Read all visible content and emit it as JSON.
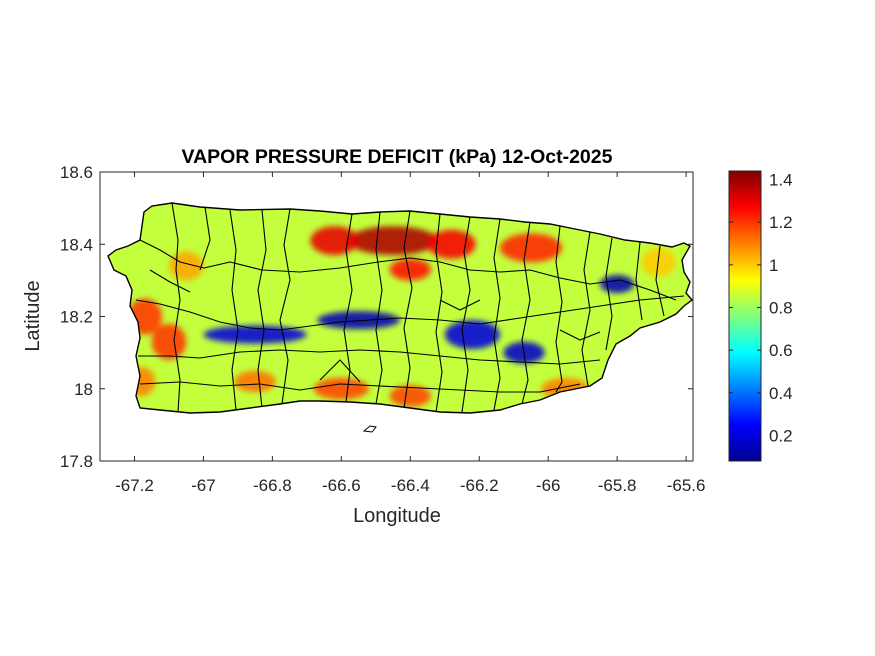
{
  "chart_data": {
    "type": "heatmap",
    "title": "VAPOR PRESSURE DEFICIT (kPa) 12-Oct-2025",
    "xlabel": "Longitude",
    "ylabel": "Latitude",
    "xlim": [
      -67.3,
      -65.58
    ],
    "ylim": [
      17.8,
      18.6
    ],
    "xticks": [
      -67.2,
      -67,
      -66.8,
      -66.6,
      -66.4,
      -66.2,
      -66,
      -65.8,
      -65.6
    ],
    "xtick_labels": [
      "-67.2",
      "-67",
      "-66.8",
      "-66.6",
      "-66.4",
      "-66.2",
      "-66",
      "-65.8",
      "-65.6"
    ],
    "yticks": [
      17.8,
      18,
      18.2,
      18.4,
      18.6
    ],
    "ytick_labels": [
      "17.8",
      "18",
      "18.2",
      "18.4",
      "18.6"
    ],
    "colormap": "jet",
    "colorbar": {
      "range": [
        0.08,
        1.44
      ],
      "ticks": [
        0.2,
        0.4,
        0.6,
        0.8,
        1,
        1.2,
        1.4
      ],
      "tick_labels": [
        "0.2",
        "0.4",
        "0.6",
        "0.8",
        "1",
        "1.2",
        "1.4"
      ]
    },
    "grid": false,
    "region": "Puerto Rico with municipality boundaries",
    "field_features": [
      {
        "lon": -66.45,
        "lat": 18.41,
        "value": 1.38,
        "spread_lon": 0.13,
        "spread_lat": 0.04
      },
      {
        "lon": -66.62,
        "lat": 18.41,
        "value": 1.3,
        "spread_lon": 0.07,
        "spread_lat": 0.04
      },
      {
        "lon": -66.28,
        "lat": 18.4,
        "value": 1.28,
        "spread_lon": 0.07,
        "spread_lat": 0.04
      },
      {
        "lon": -66.05,
        "lat": 18.39,
        "value": 1.22,
        "spread_lon": 0.09,
        "spread_lat": 0.04
      },
      {
        "lon": -66.4,
        "lat": 18.33,
        "value": 1.25,
        "spread_lon": 0.06,
        "spread_lat": 0.03
      },
      {
        "lon": -67.17,
        "lat": 18.2,
        "value": 1.2,
        "spread_lon": 0.05,
        "spread_lat": 0.05
      },
      {
        "lon": -67.1,
        "lat": 18.13,
        "value": 1.2,
        "spread_lon": 0.05,
        "spread_lat": 0.05
      },
      {
        "lon": -67.05,
        "lat": 18.34,
        "value": 1.05,
        "spread_lon": 0.05,
        "spread_lat": 0.04
      },
      {
        "lon": -67.18,
        "lat": 18.02,
        "value": 1.1,
        "spread_lon": 0.04,
        "spread_lat": 0.04
      },
      {
        "lon": -66.6,
        "lat": 18.0,
        "value": 1.18,
        "spread_lon": 0.08,
        "spread_lat": 0.03
      },
      {
        "lon": -66.4,
        "lat": 17.98,
        "value": 1.18,
        "spread_lon": 0.06,
        "spread_lat": 0.03
      },
      {
        "lon": -66.85,
        "lat": 18.02,
        "value": 1.12,
        "spread_lon": 0.06,
        "spread_lat": 0.03
      },
      {
        "lon": -65.95,
        "lat": 18.0,
        "value": 1.1,
        "spread_lon": 0.07,
        "spread_lat": 0.03
      },
      {
        "lon": -65.68,
        "lat": 18.35,
        "value": 1.0,
        "spread_lon": 0.05,
        "spread_lat": 0.04
      },
      {
        "lon": -66.85,
        "lat": 18.15,
        "value": 0.2,
        "spread_lon": 0.15,
        "spread_lat": 0.025
      },
      {
        "lon": -66.55,
        "lat": 18.19,
        "value": 0.15,
        "spread_lon": 0.12,
        "spread_lat": 0.025
      },
      {
        "lon": -66.22,
        "lat": 18.15,
        "value": 0.2,
        "spread_lon": 0.08,
        "spread_lat": 0.04
      },
      {
        "lon": -66.07,
        "lat": 18.1,
        "value": 0.18,
        "spread_lon": 0.06,
        "spread_lat": 0.03
      },
      {
        "lon": -65.8,
        "lat": 18.29,
        "value": 0.15,
        "spread_lon": 0.05,
        "spread_lat": 0.025
      }
    ]
  }
}
